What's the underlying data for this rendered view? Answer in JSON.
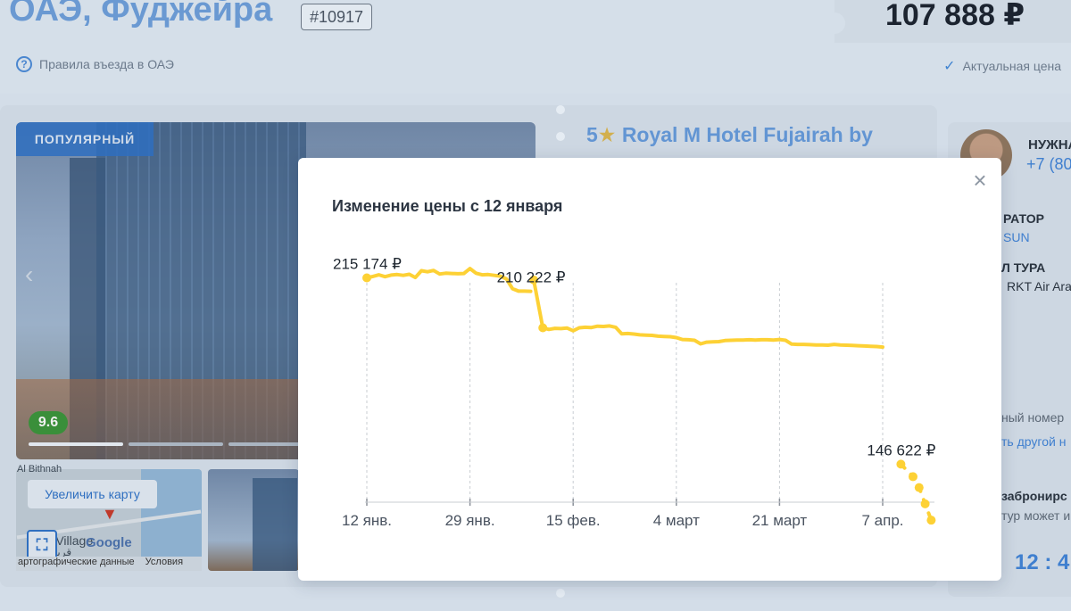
{
  "header": {
    "title": "ОАЭ, Фуджейра",
    "tour_id": "#10917",
    "entry_rules": "Правила въезда в ОАЭ",
    "price": "107 888 ₽",
    "actual_price": "Актуальная цена"
  },
  "hotel": {
    "badge": "ПОПУЛЯРНЫЙ",
    "rating": "9.6",
    "stars": "5",
    "name": "Royal M Hotel Fujairah by",
    "map_button": "Увеличить карту",
    "map_label_top": "Al Bithnah",
    "map_village": "Al Village",
    "map_arabic": "قرية",
    "map_google": "Google",
    "map_footer_data": "артографические данные",
    "map_footer_terms": "Условия"
  },
  "sidebar": {
    "need_help": "НУЖНА",
    "phone": "+7 (80",
    "operator_label": "РАТОР",
    "operator_value": "SUN",
    "flight_label": "Л ТУРА",
    "flight_value": "RKT Air Ara",
    "room_text": "ный номер",
    "choose_other": "ть другой н",
    "booking_label": "забронирс",
    "booking_text": "тур может и",
    "time": "12 : 4"
  },
  "modal": {
    "title": "Изменение цены с 12 января",
    "close_icon": "close-icon"
  },
  "chart_data": {
    "type": "line",
    "title": "Изменение цены с 12 января",
    "x_ticks": [
      "12 янв.",
      "29 янв.",
      "15 фев.",
      "4 март",
      "21 март",
      "7 апр."
    ],
    "x_tick_days": [
      0,
      17,
      34,
      51,
      68,
      85
    ],
    "series": [
      {
        "color": "#fdd135",
        "points": [
          [
            0,
            215174
          ],
          [
            1,
            215700
          ],
          [
            2,
            216300
          ],
          [
            3,
            215600
          ],
          [
            4,
            216200
          ],
          [
            5,
            216400
          ],
          [
            6,
            216100
          ],
          [
            7,
            216500
          ],
          [
            8,
            215300
          ],
          [
            9,
            217800
          ],
          [
            10,
            217400
          ],
          [
            11,
            217900
          ],
          [
            12,
            216600
          ],
          [
            13,
            216900
          ],
          [
            14,
            216800
          ],
          [
            15,
            216700
          ],
          [
            16,
            216800
          ],
          [
            17,
            218600
          ],
          [
            18,
            216900
          ],
          [
            19,
            216300
          ],
          [
            20,
            216400
          ],
          [
            21,
            216100
          ],
          [
            22,
            215800
          ],
          [
            23,
            214800
          ],
          [
            24,
            211200
          ],
          [
            25,
            210300
          ],
          [
            26,
            210300
          ],
          [
            27,
            210222
          ]
        ]
      },
      {
        "color": "#fdd135",
        "points": [
          [
            27.5,
            214400
          ],
          [
            29,
            196800
          ],
          [
            30,
            196200
          ],
          [
            31,
            196600
          ],
          [
            32,
            196500
          ],
          [
            33,
            196700
          ],
          [
            34,
            195700
          ],
          [
            35,
            196800
          ],
          [
            36,
            197000
          ],
          [
            37,
            196900
          ],
          [
            38,
            197400
          ],
          [
            39,
            197300
          ],
          [
            40,
            197500
          ],
          [
            41,
            197000
          ],
          [
            42,
            194600
          ],
          [
            43,
            194700
          ],
          [
            44,
            194500
          ],
          [
            45,
            194200
          ],
          [
            46,
            194100
          ],
          [
            47,
            194000
          ],
          [
            48,
            193700
          ],
          [
            49,
            193600
          ],
          [
            50,
            193500
          ],
          [
            51,
            193200
          ],
          [
            52,
            192500
          ],
          [
            53,
            192400
          ],
          [
            54,
            192200
          ],
          [
            55,
            190900
          ],
          [
            56,
            191500
          ],
          [
            57,
            191600
          ],
          [
            58,
            191700
          ],
          [
            59,
            192100
          ],
          [
            60,
            192200
          ],
          [
            61,
            192300
          ],
          [
            62,
            192300
          ],
          [
            63,
            192400
          ],
          [
            64,
            192300
          ],
          [
            65,
            192400
          ],
          [
            66,
            192400
          ],
          [
            67,
            192300
          ],
          [
            68,
            192500
          ],
          [
            69,
            192200
          ],
          [
            70,
            190800
          ],
          [
            71,
            190700
          ],
          [
            72,
            190700
          ],
          [
            73,
            190600
          ],
          [
            74,
            190500
          ],
          [
            75,
            190500
          ],
          [
            76,
            190400
          ],
          [
            77,
            190700
          ],
          [
            78,
            190500
          ],
          [
            79,
            190400
          ],
          [
            80,
            190300
          ],
          [
            81,
            190200
          ],
          [
            82,
            190100
          ],
          [
            83,
            190000
          ],
          [
            84,
            189900
          ],
          [
            85,
            189700
          ]
        ]
      },
      {
        "color": "#fdd135",
        "style": "dashed",
        "points": [
          [
            88,
            146622
          ],
          [
            90,
            142000
          ],
          [
            91,
            138000
          ],
          [
            92,
            132000
          ],
          [
            93,
            126000
          ]
        ]
      }
    ],
    "labels": [
      {
        "text": "215 174 ₽",
        "x": 0,
        "y": 215174
      },
      {
        "text": "210 222 ₽",
        "x": 27,
        "y": 210222
      },
      {
        "text": "146 622 ₽",
        "x": 88,
        "y": 146622
      }
    ]
  }
}
